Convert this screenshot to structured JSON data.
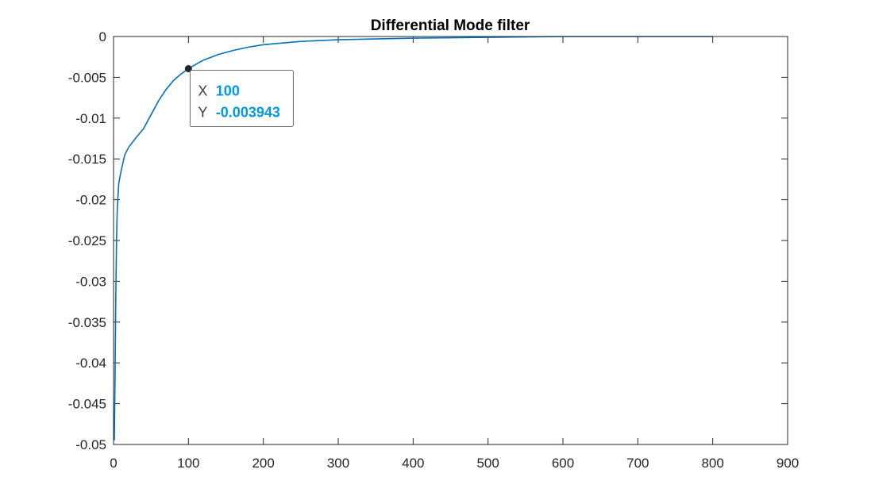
{
  "chart_data": {
    "type": "line",
    "title": "Differential Mode filter",
    "xlabel": "",
    "ylabel": "",
    "xlim": [
      0,
      900
    ],
    "ylim": [
      -0.05,
      0
    ],
    "x_ticks": [
      0,
      100,
      200,
      300,
      400,
      500,
      600,
      700,
      800,
      900
    ],
    "y_ticks": [
      0,
      -0.005,
      -0.01,
      -0.015,
      -0.02,
      -0.025,
      -0.03,
      -0.035,
      -0.04,
      -0.045,
      -0.05
    ],
    "x_tick_labels": [
      "0",
      "100",
      "200",
      "300",
      "400",
      "500",
      "600",
      "700",
      "800",
      "900"
    ],
    "y_tick_labels": [
      "0",
      "-0.005",
      "-0.01",
      "-0.015",
      "-0.02",
      "-0.025",
      "-0.03",
      "-0.035",
      "-0.04",
      "-0.045",
      "-0.05"
    ],
    "grid": false,
    "series": [
      {
        "color": "#0072BD",
        "x": [
          1,
          2,
          3,
          4,
          5,
          7,
          10,
          15,
          20,
          25,
          30,
          40,
          50,
          60,
          70,
          80,
          90,
          100,
          110,
          120,
          140,
          160,
          180,
          200,
          250,
          300,
          350,
          400,
          500,
          600,
          700,
          800
        ],
        "y": [
          -0.0495,
          -0.042,
          -0.032,
          -0.025,
          -0.021,
          -0.018,
          -0.0165,
          -0.0145,
          -0.0136,
          -0.013,
          -0.0124,
          -0.0113,
          -0.0096,
          -0.0079,
          -0.0065,
          -0.0054,
          -0.0046,
          -0.003943,
          -0.0034,
          -0.0029,
          -0.0022,
          -0.0017,
          -0.0013,
          -0.001,
          -0.0006,
          -0.0004,
          -0.0003,
          -0.0002,
          -0.0001,
          0,
          0,
          0
        ]
      }
    ],
    "datatip": {
      "x_key": "X",
      "y_key": "Y",
      "x": 100,
      "y": -0.003943,
      "x_text": "100",
      "y_text": "-0.003943",
      "value_color": "#0099E6"
    }
  }
}
